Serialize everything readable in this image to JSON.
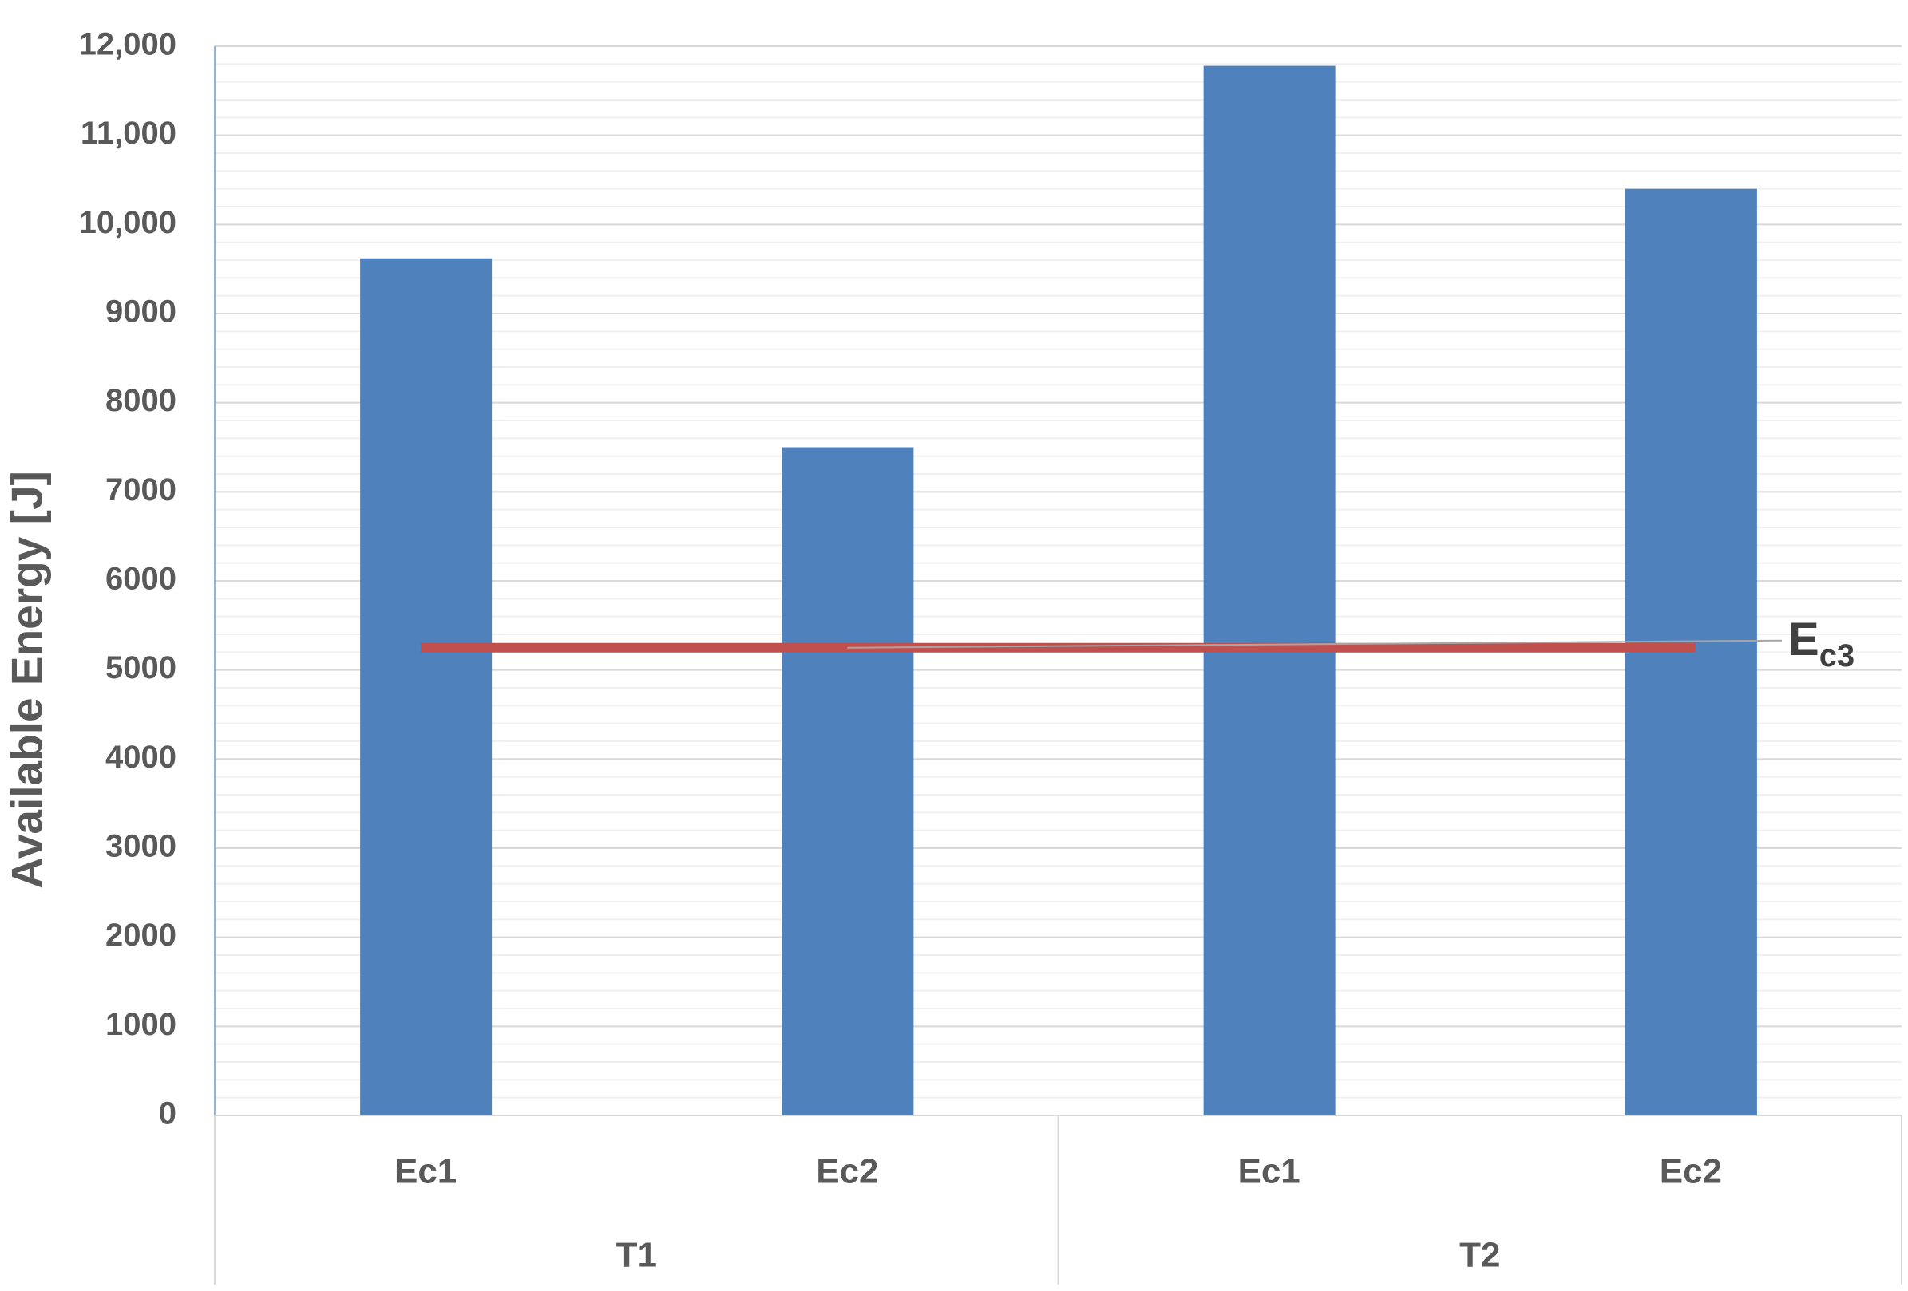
{
  "chart_data": {
    "type": "bar",
    "y_axis_label": "Available Energy [J]",
    "category_groups": [
      {
        "name": "T1",
        "categories": [
          "Ec1",
          "Ec2"
        ]
      },
      {
        "name": "T2",
        "categories": [
          "Ec1",
          "Ec2"
        ]
      }
    ],
    "values": [
      9620,
      7500,
      11780,
      10400
    ],
    "color": "#4f81bd",
    "ylim": [
      0,
      12000
    ],
    "yticks": [
      0,
      1000,
      2000,
      3000,
      4000,
      5000,
      6000,
      7000,
      8000,
      9000,
      {
        "value": 10000,
        "label": "10,000"
      },
      {
        "value": 11000,
        "label": "11,000"
      },
      {
        "value": 12000,
        "label": "12,000"
      }
    ],
    "grid": true,
    "minor_grid_step": 200,
    "reference_line": {
      "value": 5250,
      "color": "#c0504d",
      "label": "E",
      "label_subscript": "c3"
    }
  }
}
